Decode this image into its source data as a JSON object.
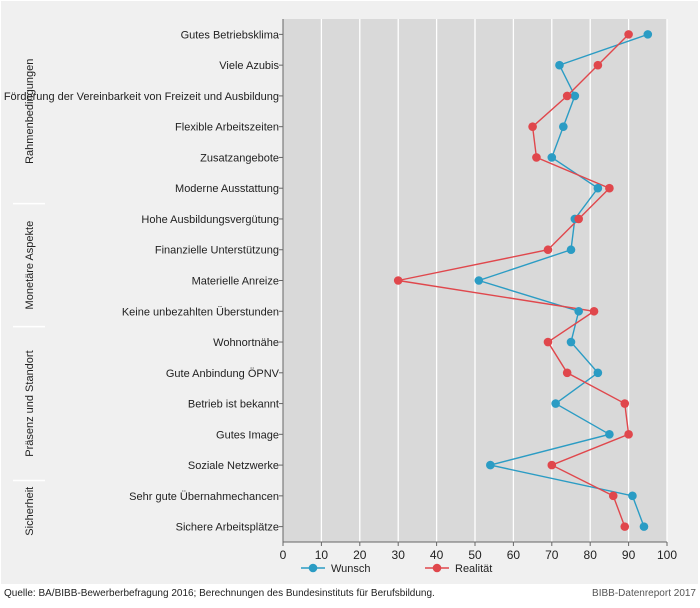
{
  "chart_data": {
    "type": "line",
    "orientation": "horizontal",
    "categories": [
      "Gutes Betriebsklima",
      "Viele Azubis",
      "Förderung der Vereinbarkeit von Freizeit und Ausbildung",
      "Flexible Arbeitszeiten",
      "Zusatzangebote",
      "Moderne Ausstattung",
      "Hohe Ausbildungsvergütung",
      "Finanzielle Unterstützung",
      "Materielle Anreize",
      "Keine unbezahlten Überstunden",
      "Wohnortnähe",
      "Gute Anbindung ÖPNV",
      "Betrieb ist bekannt",
      "Gutes Image",
      "Soziale Netzwerke",
      "Sehr gute Übernahmechancen",
      "Sichere Arbeitsplätze"
    ],
    "series": [
      {
        "name": "Wunsch",
        "color": "#2b9cc4",
        "values": [
          95,
          72,
          76,
          73,
          70,
          82,
          76,
          75,
          51,
          77,
          75,
          82,
          71,
          85,
          54,
          91,
          94
        ]
      },
      {
        "name": "Realität",
        "color": "#e0474c",
        "values": [
          90,
          82,
          74,
          65,
          66,
          85,
          77,
          69,
          30,
          81,
          69,
          74,
          89,
          90,
          70,
          86,
          89
        ]
      }
    ],
    "groups": [
      {
        "label": "Rahmenbedingungen",
        "from": 0,
        "to": 5
      },
      {
        "label": "Monetäre Aspekte",
        "from": 6,
        "to": 9
      },
      {
        "label": "Präsenz und Standort",
        "from": 10,
        "to": 14
      },
      {
        "label": "Sicherheit",
        "from": 15,
        "to": 16
      }
    ],
    "xlim": [
      0,
      100
    ],
    "xticks": [
      0,
      10,
      20,
      30,
      40,
      50,
      60,
      70,
      80,
      90,
      100
    ],
    "grid": true,
    "legend": "bottom"
  },
  "footer": {
    "source": "Quelle: BA/BIBB-Bewerberbefragung 2016; Berechnungen des Bundesinstituts für Berufsbildung.",
    "credit": "BIBB-Datenreport 2017"
  }
}
